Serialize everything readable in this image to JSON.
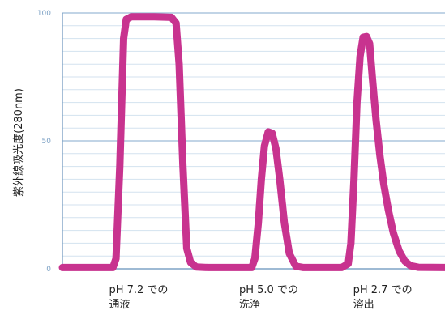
{
  "chart_data": {
    "type": "line",
    "title": "",
    "xlabel": "",
    "ylabel": "紫外線吸光度(280nm)",
    "ylim": [
      0,
      100
    ],
    "xlim": [
      0,
      100
    ],
    "yticks": [
      0,
      50,
      100
    ],
    "ytick_labels": [
      "0",
      "50",
      "100"
    ],
    "grid": true,
    "legend": "none",
    "categories": [
      {
        "x": 21.5,
        "lines": [
          "pH 7.2 での",
          "通液"
        ]
      },
      {
        "x": 55.5,
        "lines": [
          "pH 5.0 での",
          "洗浄"
        ]
      },
      {
        "x": 85.3,
        "lines": [
          "pH 2.7 での",
          "溶出"
        ]
      }
    ],
    "series": [
      {
        "color": "#c8338f",
        "points": [
          [
            0,
            0.5
          ],
          [
            13.2,
            0.5
          ],
          [
            14,
            4
          ],
          [
            15,
            40
          ],
          [
            16,
            90
          ],
          [
            16.7,
            97.5
          ],
          [
            18,
            98.5
          ],
          [
            24,
            98.5
          ],
          [
            28.5,
            98.3
          ],
          [
            29.7,
            96
          ],
          [
            30.5,
            80
          ],
          [
            31.5,
            40
          ],
          [
            32.5,
            8
          ],
          [
            33.5,
            2.5
          ],
          [
            35,
            0.7
          ],
          [
            38,
            0.5
          ],
          [
            49.5,
            0.5
          ],
          [
            50.3,
            4
          ],
          [
            51.2,
            18
          ],
          [
            52,
            35
          ],
          [
            52.8,
            48
          ],
          [
            53.8,
            53.5
          ],
          [
            54.8,
            53
          ],
          [
            55.8,
            47
          ],
          [
            56.8,
            35
          ],
          [
            58,
            18
          ],
          [
            59.3,
            6
          ],
          [
            61,
            1
          ],
          [
            63,
            0.5
          ],
          [
            73,
            0.5
          ],
          [
            74.7,
            2
          ],
          [
            75.4,
            10
          ],
          [
            76.2,
            35
          ],
          [
            77,
            65
          ],
          [
            77.8,
            83
          ],
          [
            78.6,
            90.5
          ],
          [
            79.5,
            90.8
          ],
          [
            80.3,
            88
          ],
          [
            81,
            75
          ],
          [
            82,
            58
          ],
          [
            83,
            44
          ],
          [
            84,
            33
          ],
          [
            85.2,
            23
          ],
          [
            86.5,
            14
          ],
          [
            88,
            7
          ],
          [
            89.5,
            3
          ],
          [
            91,
            1.2
          ],
          [
            93,
            0.6
          ],
          [
            100,
            0.5
          ]
        ]
      }
    ]
  },
  "colors": {
    "axis": "#7fa3c6",
    "grid_major": "#9cbad6",
    "grid_minor": "#d3e2ef",
    "series": "#c8338f"
  }
}
